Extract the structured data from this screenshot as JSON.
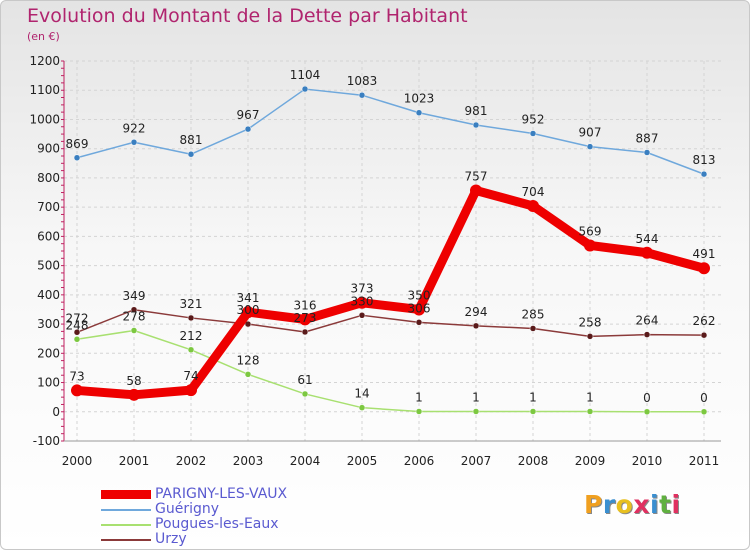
{
  "title": "Evolution du Montant de la Dette par Habitant",
  "subtitle": "(en €)",
  "logo": {
    "letters": [
      "P",
      "r",
      "o",
      "x",
      "i",
      "t",
      "i"
    ],
    "colors": [
      "#f0a020",
      "#3a8fd0",
      "#e8c020",
      "#e03060",
      "#3a8fd0",
      "#60b040",
      "#e03060"
    ]
  },
  "chart_data": {
    "type": "line",
    "title": "Evolution du Montant de la Dette par Habitant",
    "ylabel": "(en €)",
    "xlabel": "",
    "ylim": [
      -100,
      1200
    ],
    "yticks": [
      -100,
      0,
      100,
      200,
      300,
      400,
      500,
      600,
      700,
      800,
      900,
      1000,
      1100,
      1200
    ],
    "x": [
      "2000",
      "2001",
      "2002",
      "2003",
      "2004",
      "2005",
      "2006",
      "2007",
      "2008",
      "2009",
      "2010",
      "2011"
    ],
    "grid": true,
    "legend_position": "bottom-left",
    "series": [
      {
        "name": "Guérigny",
        "color": "#6fa8dc",
        "marker": "#3a7fc0",
        "thick": false,
        "values": [
          869,
          922,
          881,
          967,
          1104,
          1083,
          1023,
          981,
          952,
          907,
          887,
          813
        ]
      },
      {
        "name": "Pougues-les-Eaux",
        "color": "#a8e070",
        "marker": "#7cc840",
        "thick": false,
        "values": [
          248,
          278,
          212,
          128,
          61,
          14,
          1,
          1,
          1,
          1,
          0,
          0
        ]
      },
      {
        "name": "Urzy",
        "color": "#8b3a3a",
        "marker": "#5a1a1a",
        "thick": false,
        "values": [
          272,
          349,
          321,
          300,
          273,
          330,
          306,
          294,
          285,
          258,
          264,
          262
        ]
      },
      {
        "name": "PARIGNY-LES-VAUX",
        "color": "#ee0000",
        "marker": "#ee0000",
        "thick": true,
        "values": [
          73,
          58,
          74,
          341,
          316,
          373,
          350,
          757,
          704,
          569,
          544,
          491
        ]
      }
    ],
    "data_labels": [
      {
        "series": 0,
        "texts": [
          "869",
          "922",
          "881",
          "967",
          "1104",
          "1083",
          "1023",
          "981",
          "952",
          "907",
          "887",
          "813"
        ]
      },
      {
        "series": 1,
        "texts": [
          "248",
          "278",
          "212",
          "128",
          "61",
          "14",
          "1",
          "1",
          "1",
          "1",
          "0",
          "0"
        ]
      },
      {
        "series": 2,
        "texts": [
          "272",
          "349",
          "321",
          "300",
          "273",
          "330",
          "306",
          "294",
          "285",
          "258",
          "264",
          "262"
        ]
      },
      {
        "series": 3,
        "texts": [
          "73",
          "58",
          "74",
          "341",
          "316",
          "373",
          "350",
          "757",
          "704",
          "569",
          "544",
          "491"
        ]
      }
    ]
  },
  "legend": [
    {
      "label": "PARIGNY-LES-VAUX",
      "color": "#ee0000",
      "thick": true
    },
    {
      "label": "Guérigny",
      "color": "#6fa8dc",
      "thick": false
    },
    {
      "label": "Pougues-les-Eaux",
      "color": "#a8e070",
      "thick": false
    },
    {
      "label": "Urzy",
      "color": "#8b3a3a",
      "thick": false
    }
  ]
}
